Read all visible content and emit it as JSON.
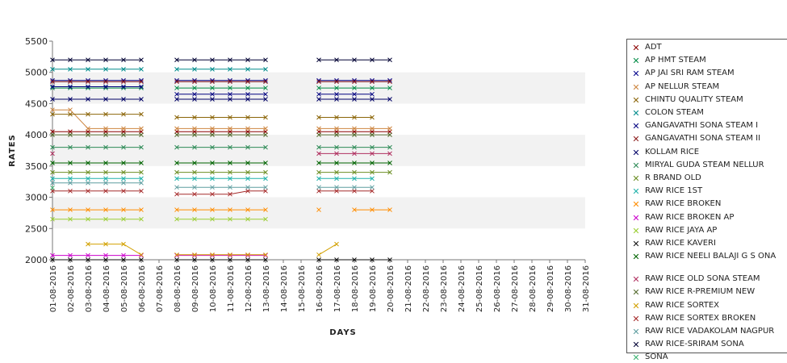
{
  "chart_data": {
    "type": "line",
    "xlabel": "DAYS",
    "ylabel": "RATES",
    "ylim": [
      2000,
      5500
    ],
    "yticks": [
      "2000",
      "2500",
      "3000",
      "3500",
      "4000",
      "4500",
      "5000",
      "5500"
    ],
    "grid": "alternating horizontal bands",
    "legend_position": "right",
    "x": [
      "01-08-2016",
      "02-08-2016",
      "03-08-2016",
      "04-08-2016",
      "05-08-2016",
      "06-08-2016",
      "07-08-2016",
      "08-08-2016",
      "09-08-2016",
      "10-08-2016",
      "11-08-2016",
      "12-08-2016",
      "13-08-2016",
      "14-08-2016",
      "15-08-2016",
      "16-08-2016",
      "17-08-2016",
      "18-08-2016",
      "19-08-2016",
      "20-08-2016",
      "21-08-2016",
      "22-08-2016",
      "23-08-2016",
      "24-08-2016",
      "25-08-2016",
      "26-08-2016",
      "27-08-2016",
      "28-08-2016",
      "29-08-2016",
      "30-08-2016",
      "31-08-2016"
    ],
    "series": [
      {
        "name": "ADT",
        "color": "#8b0000",
        "values": [
          4050,
          4050,
          4050,
          4050,
          4050,
          4050,
          null,
          4050,
          4050,
          4050,
          4050,
          4050,
          4050,
          null,
          null,
          4050,
          4050,
          4050,
          4050,
          4050,
          null,
          null,
          null,
          null,
          null,
          null,
          null,
          null,
          null,
          null,
          null
        ]
      },
      {
        "name": "AP HMT STEAM",
        "color": "#008b45",
        "values": [
          4750,
          4750,
          4750,
          4750,
          4750,
          4750,
          null,
          4750,
          4750,
          4750,
          4750,
          4750,
          4750,
          null,
          null,
          4750,
          4750,
          4750,
          4750,
          4750,
          null,
          null,
          null,
          null,
          null,
          null,
          null,
          null,
          null,
          null,
          null
        ]
      },
      {
        "name": "AP JAI SRI RAM STEAM",
        "color": "#00008b",
        "values": [
          4870,
          4870,
          4870,
          4870,
          4870,
          4870,
          null,
          4870,
          4870,
          4870,
          4870,
          4870,
          4870,
          null,
          null,
          4870,
          4870,
          4870,
          4870,
          4870,
          null,
          null,
          null,
          null,
          null,
          null,
          null,
          null,
          null,
          null,
          null
        ]
      },
      {
        "name": "AP NELLUR STEAM",
        "color": "#cd853f",
        "values": [
          4400,
          4400,
          4100,
          4100,
          4100,
          4100,
          null,
          4100,
          4100,
          4100,
          4100,
          4100,
          4100,
          null,
          null,
          4100,
          4100,
          4100,
          4100,
          4100,
          null,
          null,
          null,
          null,
          null,
          null,
          null,
          null,
          null,
          null,
          null
        ]
      },
      {
        "name": "CHINTU QUALITY STEAM",
        "color": "#8b6508",
        "values": [
          4330,
          4330,
          4330,
          4330,
          4330,
          4330,
          null,
          4280,
          4280,
          4280,
          4280,
          4280,
          4280,
          null,
          null,
          4280,
          4280,
          4280,
          4280,
          null,
          null,
          null,
          null,
          null,
          null,
          null,
          null,
          null,
          null,
          null,
          null
        ]
      },
      {
        "name": "COLON STEAM",
        "color": "#008b8b",
        "values": [
          5050,
          5050,
          5050,
          5050,
          5050,
          5050,
          null,
          5050,
          5050,
          5050,
          5050,
          5050,
          5050,
          null,
          null,
          null,
          null,
          null,
          null,
          null,
          null,
          null,
          null,
          null,
          null,
          null,
          null,
          null,
          null,
          null,
          null
        ]
      },
      {
        "name": "GANGAVATHI SONA STEAM I",
        "color": "#000080",
        "values": [
          4770,
          4770,
          4770,
          4770,
          4770,
          4770,
          null,
          4650,
          4650,
          4650,
          4650,
          4650,
          4650,
          null,
          null,
          4650,
          4650,
          4650,
          4650,
          null,
          null,
          null,
          null,
          null,
          null,
          null,
          null,
          null,
          null,
          null,
          null
        ]
      },
      {
        "name": "GANGAVATHI SONA STEAM II",
        "color": "#8b1a1a",
        "values": [
          4850,
          4850,
          4850,
          4850,
          4850,
          4850,
          null,
          4850,
          4850,
          4850,
          4850,
          4850,
          4850,
          null,
          null,
          4850,
          4850,
          4850,
          4850,
          4850,
          null,
          null,
          null,
          null,
          null,
          null,
          null,
          null,
          null,
          null,
          null
        ]
      },
      {
        "name": "KOLLAM RICE",
        "color": "#000066",
        "values": [
          4570,
          4570,
          4570,
          4570,
          4570,
          4570,
          null,
          4570,
          4570,
          4570,
          4570,
          4570,
          4570,
          null,
          null,
          4570,
          4570,
          4570,
          4570,
          4570,
          null,
          null,
          null,
          null,
          null,
          null,
          null,
          null,
          null,
          null,
          null
        ]
      },
      {
        "name": "MIRYAL GUDA STEAM NELLUR",
        "color": "#2e8b57",
        "values": [
          3800,
          3800,
          3800,
          3800,
          3800,
          3800,
          null,
          3800,
          3800,
          3800,
          3800,
          3800,
          3800,
          null,
          null,
          3800,
          3800,
          3800,
          3800,
          3800,
          null,
          null,
          null,
          null,
          null,
          null,
          null,
          null,
          null,
          null,
          null
        ]
      },
      {
        "name": "R BRAND OLD",
        "color": "#6b8e23",
        "values": [
          3400,
          3400,
          3400,
          3400,
          3400,
          3400,
          null,
          3400,
          3400,
          3400,
          3400,
          3400,
          3400,
          null,
          null,
          3400,
          3400,
          3400,
          3400,
          3400,
          null,
          null,
          null,
          null,
          null,
          null,
          null,
          null,
          null,
          null,
          null
        ]
      },
      {
        "name": "RAW RICE 1ST",
        "color": "#20b2aa",
        "values": [
          3300,
          3300,
          3300,
          3300,
          3300,
          3300,
          null,
          3300,
          3300,
          3300,
          3300,
          3300,
          3300,
          null,
          null,
          3300,
          3300,
          3300,
          3300,
          null,
          null,
          null,
          null,
          null,
          null,
          null,
          null,
          null,
          null,
          null,
          null
        ]
      },
      {
        "name": "RAW RICE BROKEN",
        "color": "#ff8c00",
        "values": [
          2800,
          2800,
          2800,
          2800,
          2800,
          2800,
          null,
          2800,
          2800,
          2800,
          2800,
          2800,
          2800,
          null,
          null,
          2800,
          null,
          2800,
          2800,
          2800,
          null,
          null,
          null,
          null,
          null,
          null,
          null,
          null,
          null,
          null,
          null
        ]
      },
      {
        "name": "RAW RICE BROKEN AP",
        "color": "#cc00cc",
        "values": [
          2070,
          2070,
          2070,
          2070,
          2070,
          2070,
          null,
          2070,
          2070,
          2070,
          2070,
          2070,
          2070,
          null,
          null,
          null,
          null,
          null,
          null,
          null,
          null,
          null,
          null,
          null,
          null,
          null,
          null,
          null,
          null,
          null,
          null
        ]
      },
      {
        "name": "RAW RICE JAYA AP",
        "color": "#9acd32",
        "values": [
          2650,
          2650,
          2650,
          2650,
          2650,
          2650,
          null,
          2650,
          2650,
          2650,
          2650,
          2650,
          2650,
          null,
          null,
          null,
          null,
          null,
          null,
          null,
          null,
          null,
          null,
          null,
          null,
          null,
          null,
          null,
          null,
          null,
          null
        ]
      },
      {
        "name": "RAW RICE KAVERI",
        "color": "#111111",
        "values": [
          2000,
          2000,
          2000,
          2000,
          2000,
          2000,
          null,
          2000,
          2000,
          2000,
          2000,
          2000,
          2000,
          null,
          null,
          2000,
          2000,
          2000,
          2000,
          2000,
          null,
          null,
          null,
          null,
          null,
          null,
          null,
          null,
          null,
          null,
          null
        ]
      },
      {
        "name": "RAW RICE NEELI BALAJI G S ONA",
        "color": "#006400",
        "values": [
          3550,
          3550,
          3550,
          3550,
          3550,
          3550,
          null,
          3550,
          3550,
          3550,
          3550,
          3550,
          3550,
          null,
          null,
          3550,
          3550,
          3550,
          3550,
          3550,
          null,
          null,
          null,
          null,
          null,
          null,
          null,
          null,
          null,
          null,
          null
        ]
      },
      {
        "name": "RAW RICE OLD SONA STEAM",
        "color": "#b03060",
        "values": [
          3700,
          null,
          null,
          null,
          null,
          null,
          null,
          null,
          null,
          null,
          null,
          null,
          null,
          null,
          null,
          3700,
          3700,
          3700,
          3700,
          3700,
          null,
          null,
          null,
          null,
          null,
          null,
          null,
          null,
          null,
          null,
          null
        ]
      },
      {
        "name": "RAW RICE R-PREMIUM NEW",
        "color": "#556b2f",
        "values": [
          4000,
          4000,
          4000,
          4000,
          4000,
          4000,
          null,
          4000,
          4000,
          4000,
          4000,
          4000,
          4000,
          null,
          null,
          4000,
          4000,
          4000,
          4000,
          4000,
          null,
          null,
          null,
          null,
          null,
          null,
          null,
          null,
          null,
          null,
          null
        ]
      },
      {
        "name": "RAW RICE SORTEX",
        "color": "#d2a000",
        "values": [
          null,
          null,
          2250,
          2250,
          2250,
          2080,
          null,
          2080,
          2080,
          2080,
          2080,
          2080,
          2080,
          null,
          null,
          2080,
          2250,
          null,
          null,
          null,
          null,
          null,
          null,
          null,
          null,
          null,
          null,
          null,
          null,
          null,
          null
        ]
      },
      {
        "name": "RAW RICE SORTEX BROKEN",
        "color": "#a52a2a",
        "values": [
          3100,
          3100,
          3100,
          3100,
          3100,
          3100,
          null,
          3050,
          3050,
          3050,
          3050,
          3100,
          3100,
          null,
          null,
          3100,
          3100,
          3100,
          3100,
          null,
          null,
          null,
          null,
          null,
          null,
          null,
          null,
          null,
          null,
          null,
          null
        ]
      },
      {
        "name": "RAW RICE VADAKOLAM NAGPUR",
        "color": "#5f9ea0",
        "values": [
          3230,
          3230,
          3230,
          3230,
          3230,
          3230,
          null,
          3160,
          3160,
          3160,
          3160,
          3160,
          3160,
          null,
          null,
          3160,
          3160,
          3160,
          3160,
          null,
          null,
          null,
          null,
          null,
          null,
          null,
          null,
          null,
          null,
          null,
          null
        ]
      },
      {
        "name": "RAW RICE-SRIRAM SONA",
        "color": "#000033",
        "values": [
          5200,
          5200,
          5200,
          5200,
          5200,
          5200,
          null,
          5200,
          5200,
          5200,
          5200,
          5200,
          5200,
          null,
          null,
          5200,
          5200,
          5200,
          5200,
          5200,
          null,
          null,
          null,
          null,
          null,
          null,
          null,
          null,
          null,
          null,
          null
        ]
      },
      {
        "name": "SONA",
        "color": "#3cb371",
        "values": [
          3150,
          null,
          null,
          null,
          null,
          null,
          null,
          null,
          null,
          null,
          null,
          null,
          null,
          null,
          null,
          null,
          null,
          null,
          null,
          null,
          null,
          null,
          null,
          null,
          null,
          null,
          null,
          null,
          null,
          null,
          null
        ]
      }
    ]
  }
}
